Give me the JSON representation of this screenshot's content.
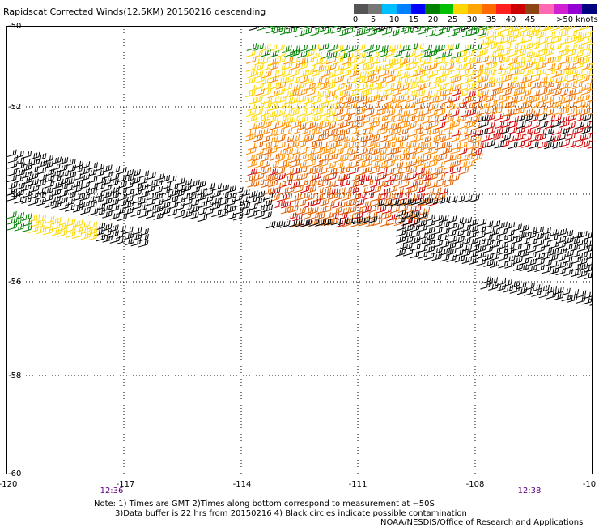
{
  "header": {
    "title": "Rapidscat Corrected Winds(12.5KM) 20150216 descending"
  },
  "legend": {
    "colors": [
      "#555555",
      "#777777",
      "#00bfff",
      "#0080ff",
      "#0000ff",
      "#008000",
      "#00c000",
      "#ffd700",
      "#ffa500",
      "#ff6a00",
      "#ff2020",
      "#cc0000",
      "#8b4513",
      "#ff69b4",
      "#d020d0",
      "#9400d3",
      "#000080"
    ],
    "labels": [
      "0",
      "5",
      "10",
      "15",
      "20",
      "25",
      "30",
      "35",
      "40",
      "45"
    ],
    "unit": ">50 knots"
  },
  "map": {
    "lat_labels": [
      "-50",
      "-52",
      "-54",
      "-56",
      "-58",
      "-60"
    ],
    "lon_labels": [
      "-120",
      "-117",
      "-114",
      "-111",
      "-108",
      "-10"
    ],
    "time_labels": [
      "12:36",
      "12:38"
    ],
    "barb_colors": {
      "black": "#000000",
      "green": "#008000",
      "yellow": "#ffd700",
      "orange": "#ff8c00",
      "darkorange": "#e06000",
      "red": "#d00000"
    }
  },
  "notes": {
    "line1": "Note: 1) Times are GMT 2)Times along bottom correspond to measurement at −50S",
    "line2": "3)Data buffer is 22 hrs from 20150216 4) Black circles indicate possible contamination",
    "line3": "NOAA/NESDIS/Office of Research and Applications"
  }
}
